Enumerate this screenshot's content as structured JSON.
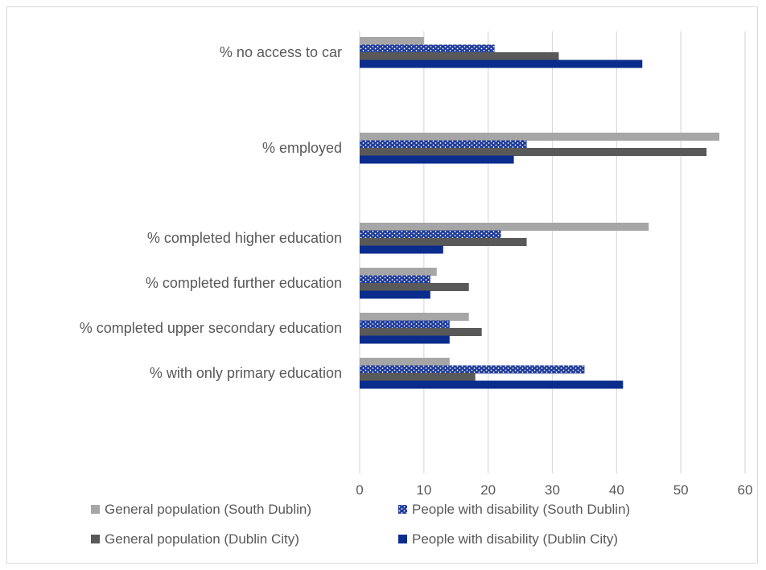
{
  "chart_data": {
    "type": "bar",
    "orientation": "horizontal",
    "categories": [
      "% no access to car",
      "% employed",
      "% completed higher education",
      "% completed further education",
      "% completed upper secondary education",
      "% with only primary education"
    ],
    "series": [
      {
        "name": "General population (South Dublin)",
        "values": [
          10,
          56,
          45,
          12,
          17,
          14
        ],
        "color": "#a6a6a6",
        "pattern": "solid"
      },
      {
        "name": "People with disability (South Dublin)",
        "values": [
          21,
          26,
          22,
          11,
          14,
          35
        ],
        "color": "#1f3c99",
        "pattern": "dotted"
      },
      {
        "name": "General population (Dublin City)",
        "values": [
          31,
          54,
          26,
          17,
          19,
          18
        ],
        "color": "#595959",
        "pattern": "solid"
      },
      {
        "name": "People with disability (Dublin City)",
        "values": [
          44,
          24,
          13,
          11,
          14,
          41
        ],
        "color": "#0a2c8c",
        "pattern": "solid"
      }
    ],
    "xlim": [
      0,
      60
    ],
    "xticks": [
      0,
      10,
      20,
      30,
      40,
      50,
      60
    ],
    "grid": true,
    "legend_position": "bottom",
    "title": "",
    "xlabel": "",
    "ylabel": ""
  }
}
